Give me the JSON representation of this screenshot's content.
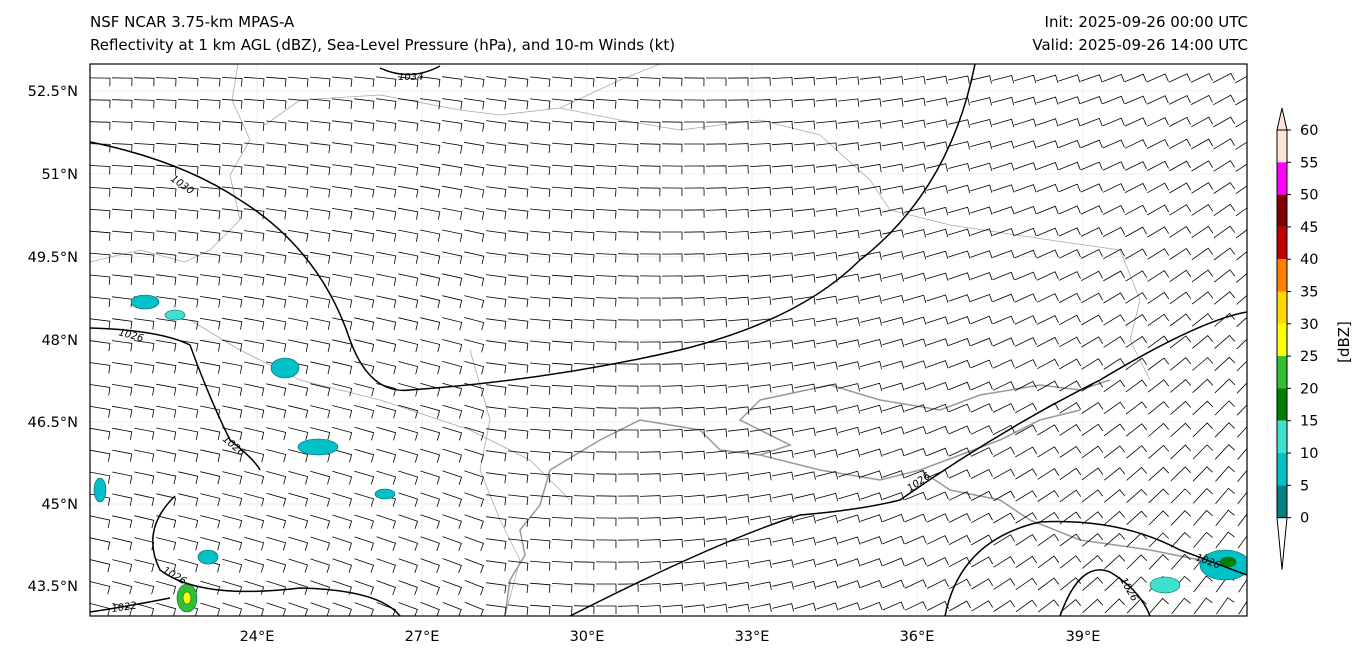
{
  "header": {
    "title": "NSF NCAR 3.75-km MPAS-A",
    "subtitle": "Reflectivity at 1 km AGL (dBZ), Sea-Level Pressure (hPa), and 10-m Winds (kt)",
    "init": "Init: 2025-09-26 00:00 UTC",
    "valid": "Valid: 2025-09-26 14:00 UTC"
  },
  "map": {
    "lat_ticks": [
      "52.5°N",
      "51°N",
      "49.5°N",
      "48°N",
      "46.5°N",
      "45°N",
      "43.5°N"
    ],
    "lon_ticks": [
      "24°E",
      "27°E",
      "30°E",
      "33°E",
      "36°E",
      "39°E"
    ],
    "isobar_labels": [
      "1034",
      "1030",
      "1026",
      "1026",
      "1026",
      "1026",
      "1022",
      "1026",
      "1026"
    ]
  },
  "colorbar": {
    "label": "[dBZ]",
    "ticks": [
      "0",
      "5",
      "10",
      "15",
      "20",
      "25",
      "30",
      "35",
      "40",
      "45",
      "50",
      "55",
      "60"
    ],
    "colors": [
      "#ffffff",
      "#008080",
      "#00c0c8",
      "#40e0d0",
      "#008000",
      "#30c030",
      "#ffff00",
      "#ffd700",
      "#ff8000",
      "#c00000",
      "#800000",
      "#ff00ff",
      "#ffe4d8"
    ]
  }
}
